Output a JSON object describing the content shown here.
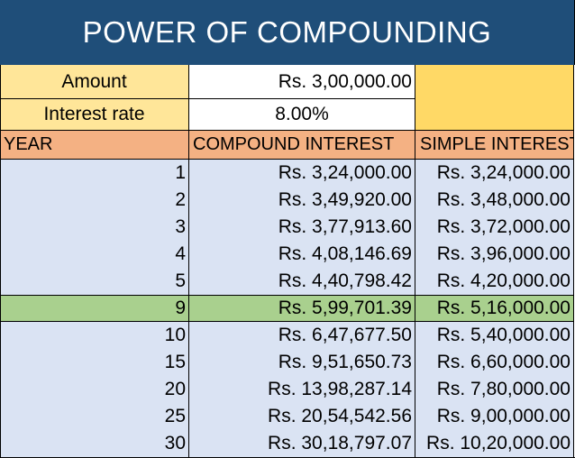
{
  "title": "POWER OF COMPOUNDING",
  "inputs": {
    "amount_label": "Amount",
    "amount_value": "Rs. 3,00,000.00",
    "rate_label": "Interest rate",
    "rate_value": "8.00%"
  },
  "headers": {
    "year": "YEAR",
    "compound": "COMPOUND INTEREST",
    "simple": "SIMPLE INTEREST"
  },
  "rows": [
    {
      "year": "1",
      "compound": "Rs. 3,24,000.00",
      "simple": "Rs. 3,24,000.00"
    },
    {
      "year": "2",
      "compound": "Rs. 3,49,920.00",
      "simple": "Rs. 3,48,000.00"
    },
    {
      "year": "3",
      "compound": "Rs. 3,77,913.60",
      "simple": "Rs. 3,72,000.00"
    },
    {
      "year": "4",
      "compound": "Rs. 4,08,146.69",
      "simple": "Rs. 3,96,000.00"
    },
    {
      "year": "5",
      "compound": "Rs. 4,40,798.42",
      "simple": "Rs. 4,20,000.00"
    },
    {
      "year": "9",
      "compound": "Rs. 5,99,701.39",
      "simple": "Rs. 5,16,000.00"
    },
    {
      "year": "10",
      "compound": "Rs. 6,47,677.50",
      "simple": "Rs. 5,40,000.00"
    },
    {
      "year": "15",
      "compound": "Rs. 9,51,650.73",
      "simple": "Rs. 6,60,000.00"
    },
    {
      "year": "20",
      "compound": "Rs. 13,98,287.14",
      "simple": "Rs. 7,80,000.00"
    },
    {
      "year": "25",
      "compound": "Rs. 20,54,542.56",
      "simple": "Rs. 9,00,000.00"
    },
    {
      "year": "30",
      "compound": "Rs. 30,18,797.07",
      "simple": "Rs. 10,20,000.00"
    }
  ],
  "colors": {
    "title_bg": "#1f4e79",
    "label_bg": "#ffe699",
    "accent_yellow": "#ffd966",
    "header_bg": "#f4b183",
    "row_bg": "#dae3f3",
    "highlight_bg": "#a9d08e"
  }
}
